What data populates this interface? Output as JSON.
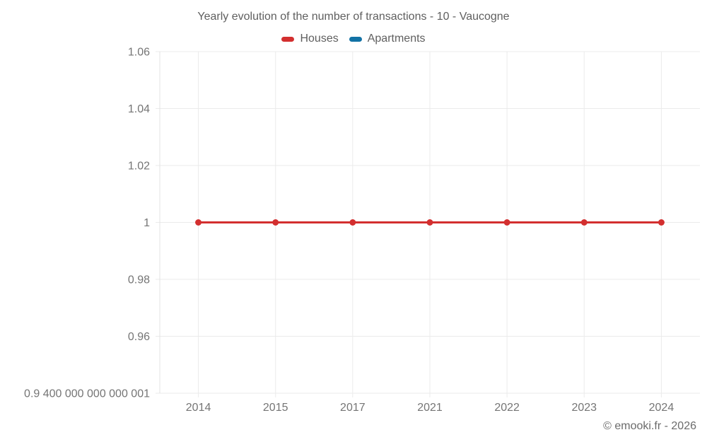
{
  "header": {
    "title": "Yearly evolution of the number of transactions - 10 - Vaucogne"
  },
  "footer": {
    "credit": "© emooki.fr - 2026"
  },
  "colors": {
    "houses": "#d32f2f",
    "apartments": "#1272a5",
    "grid": "#ebebeb",
    "axis": "#e3e3e3",
    "tick_text": "#757575"
  },
  "chart_data": {
    "type": "line",
    "title": "Yearly evolution of the number of transactions - 10 - Vaucogne",
    "categories": [
      "2014",
      "2015",
      "2017",
      "2021",
      "2022",
      "2023",
      "2024"
    ],
    "series": [
      {
        "name": "Houses",
        "color": "#d32f2f",
        "values": [
          1,
          1,
          1,
          1,
          1,
          1,
          1
        ]
      },
      {
        "name": "Apartments",
        "color": "#1272a5",
        "values": []
      }
    ],
    "xlabel": "",
    "ylabel": "",
    "ylim": [
      0.94,
      1.06
    ],
    "yticks": {
      "values": [
        1.06,
        1.04,
        1.02,
        1,
        0.98,
        0.96,
        0.94
      ],
      "labels": [
        "1.06",
        "1.04",
        "1.02",
        "1",
        "0.98",
        "0.96",
        "0.9 400 000 000 000 001"
      ]
    },
    "grid": true,
    "legend_position": "top"
  }
}
